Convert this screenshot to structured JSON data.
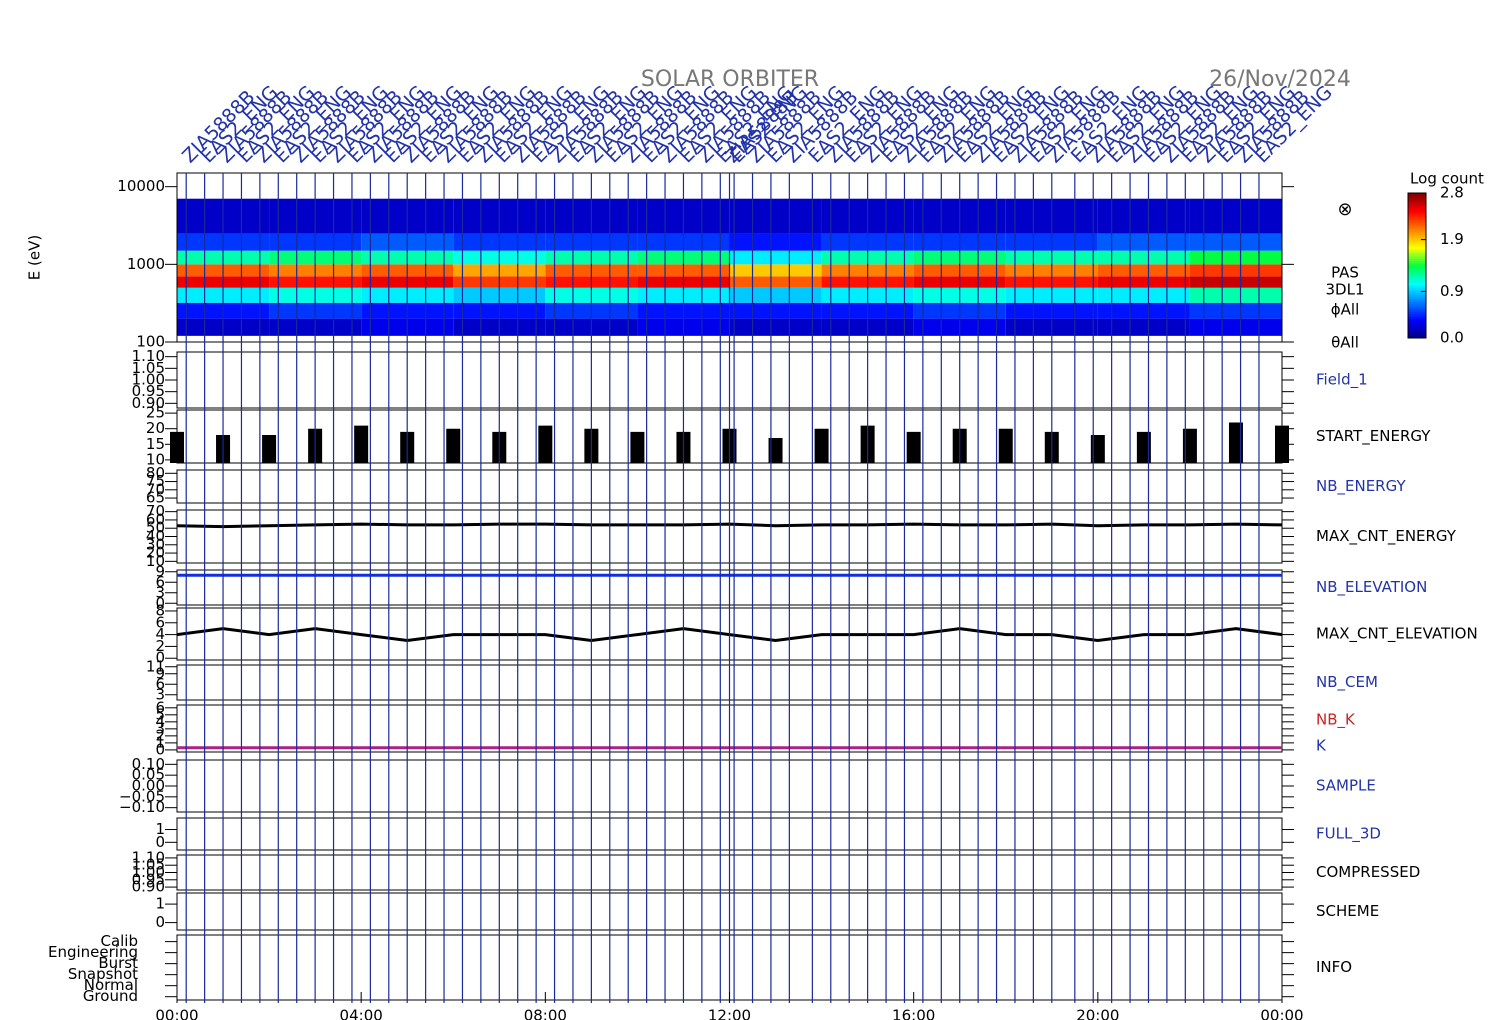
{
  "header": {
    "title": "SOLAR ORBITER",
    "date": "26/Nov/2024",
    "annotations": [
      "ZIA5888B",
      "EAS2_ENG",
      "ZIA5888B",
      "EAS2_ENG"
    ]
  },
  "x_axis": {
    "xlim": [
      0,
      24
    ],
    "xticks": [
      {
        "value": 0,
        "label": "00:00"
      },
      {
        "value": 4,
        "label": "04:00"
      },
      {
        "value": 8,
        "label": "08:00"
      },
      {
        "value": 12,
        "label": "12:00"
      },
      {
        "value": 16,
        "label": "16:00"
      },
      {
        "value": 20,
        "label": "20:00"
      },
      {
        "value": 24,
        "label": "00:00"
      }
    ]
  },
  "event_lines": {
    "color": "#1a2a9a",
    "x": [
      0.2,
      0.6,
      1.0,
      1.4,
      1.8,
      2.2,
      2.6,
      3.0,
      3.4,
      3.8,
      4.2,
      4.6,
      5.0,
      5.4,
      5.8,
      6.2,
      6.6,
      7.0,
      7.4,
      7.8,
      8.2,
      8.6,
      9.0,
      9.4,
      9.8,
      10.2,
      10.6,
      11.0,
      11.4,
      11.8,
      12.0,
      12.1,
      12.5,
      12.9,
      13.3,
      13.8,
      14.2,
      14.6,
      15.0,
      15.4,
      15.8,
      16.2,
      16.6,
      17.0,
      17.4,
      17.8,
      18.2,
      18.6,
      19.0,
      19.5,
      19.9,
      20.3,
      20.7,
      21.1,
      21.5,
      21.9,
      22.3,
      22.7,
      23.1,
      23.5
    ]
  },
  "colorbar": {
    "title": "Log count",
    "zlim": [
      0,
      2.8
    ],
    "colormap": [
      "#00007f",
      "#0000ff",
      "#0080ff",
      "#00ffff",
      "#00ff40",
      "#ffff00",
      "#ff8000",
      "#ff0000",
      "#7f0000"
    ],
    "ticks": [
      {
        "value": 0,
        "label": "0.0"
      },
      {
        "value": 0.9,
        "label": "0.9"
      },
      {
        "value": 1.9,
        "label": "1.9"
      },
      {
        "value": 2.8,
        "label": "2.8"
      }
    ]
  },
  "chart_data": [
    {
      "type": "heatmap",
      "ylabel": "E (eV)",
      "log": true,
      "ylim": [
        100,
        15000
      ],
      "yticks": [
        100,
        1000,
        10000
      ],
      "labels": [
        "PAS",
        "3DL1",
        "ϕAll",
        "θAll"
      ],
      "label_color": "#000000",
      "symbol": "⊗",
      "x_edges": [
        0,
        2,
        4,
        6,
        8,
        10,
        12,
        14,
        16,
        18,
        20,
        22,
        24
      ],
      "y_edges": [
        120,
        200,
        320,
        500,
        700,
        1000,
        1500,
        2500,
        7000
      ],
      "z": [
        [
          0.2,
          0.2,
          0.3,
          0.2,
          0.2,
          0.3,
          0.2,
          0.2,
          0.3,
          0.2,
          0.2,
          0.3
        ],
        [
          0.4,
          0.5,
          0.4,
          0.4,
          0.5,
          0.4,
          0.4,
          0.4,
          0.5,
          0.4,
          0.4,
          0.5
        ],
        [
          1.0,
          1.1,
          1.0,
          0.9,
          1.1,
          1.0,
          0.9,
          1.0,
          1.1,
          1.0,
          1.0,
          1.2
        ],
        [
          2.5,
          2.4,
          2.5,
          2.3,
          2.4,
          2.5,
          2.2,
          2.4,
          2.5,
          2.4,
          2.5,
          2.6
        ],
        [
          2.2,
          2.1,
          2.2,
          2.0,
          2.2,
          2.2,
          1.9,
          2.1,
          2.2,
          2.1,
          2.2,
          2.3
        ],
        [
          1.2,
          1.3,
          1.2,
          1.1,
          1.2,
          1.3,
          1.0,
          1.2,
          1.3,
          1.2,
          1.2,
          1.4
        ],
        [
          0.5,
          0.5,
          0.6,
          0.5,
          0.5,
          0.5,
          0.4,
          0.5,
          0.5,
          0.5,
          0.6,
          0.6
        ],
        [
          0.2,
          0.2,
          0.2,
          0.2,
          0.2,
          0.2,
          0.2,
          0.2,
          0.2,
          0.2,
          0.2,
          0.2
        ]
      ]
    },
    {
      "type": "empty",
      "labels": [
        "Field_1"
      ],
      "label_color": "#2233aa",
      "ylim": [
        0.88,
        1.12
      ],
      "yticks": [
        {
          "value": 0.9,
          "label": "0.90"
        },
        {
          "value": 0.95,
          "label": "0.95"
        },
        {
          "value": 1.0,
          "label": "1.00"
        },
        {
          "value": 1.05,
          "label": "1.05"
        },
        {
          "value": 1.1,
          "label": "1.10"
        }
      ]
    },
    {
      "type": "bars",
      "labels": [
        "START_ENERGY"
      ],
      "label_color": "#000000",
      "ylim": [
        9,
        26
      ],
      "yticks": [
        10,
        15,
        20,
        25
      ],
      "x": [
        0,
        1,
        2,
        3,
        4,
        5,
        6,
        7,
        8,
        9,
        10,
        11,
        12,
        13,
        14,
        15,
        16,
        17,
        18,
        19,
        20,
        21,
        22,
        23,
        24
      ],
      "series": [
        {
          "color": "#000000",
          "values": [
            19,
            18,
            18,
            20,
            21,
            19,
            20,
            19,
            21,
            20,
            19,
            19,
            20,
            17,
            20,
            21,
            19,
            20,
            20,
            19,
            18,
            19,
            20,
            22,
            21
          ]
        }
      ]
    },
    {
      "type": "empty",
      "labels": [
        "NB_ENERGY"
      ],
      "label_color": "#2233aa",
      "ylim": [
        62,
        82
      ],
      "yticks": [
        65,
        70,
        75,
        80
      ]
    },
    {
      "type": "line",
      "labels": [
        "MAX_CNT_ENERGY"
      ],
      "label_color": "#000000",
      "ylim": [
        8,
        72
      ],
      "yticks": [
        10,
        20,
        30,
        40,
        50,
        60,
        70
      ],
      "x": [
        0,
        1,
        2,
        3,
        4,
        5,
        6,
        7,
        8,
        9,
        10,
        11,
        12,
        13,
        14,
        15,
        16,
        17,
        18,
        19,
        20,
        21,
        22,
        23,
        24
      ],
      "series": [
        {
          "color": "#000000",
          "values": [
            53,
            52,
            53,
            54,
            55,
            54,
            54,
            55,
            55,
            54,
            54,
            54,
            55,
            53,
            54,
            54,
            55,
            54,
            54,
            55,
            53,
            54,
            54,
            55,
            54
          ]
        }
      ]
    },
    {
      "type": "line",
      "labels": [
        "NB_ELEVATION"
      ],
      "label_color": "#2233aa",
      "ylim": [
        -0.5,
        9.5
      ],
      "yticks": [
        0,
        3,
        6,
        9
      ],
      "x": [
        0,
        1,
        2,
        3,
        4,
        5,
        6,
        7,
        8,
        9,
        10,
        11,
        12,
        13,
        14,
        15,
        16,
        17,
        18,
        19,
        20,
        21,
        22,
        23,
        24
      ],
      "series": [
        {
          "color": "#1030e0",
          "values": [
            8,
            8,
            8,
            8,
            8,
            8,
            8,
            8,
            8,
            8,
            8,
            8,
            8,
            8,
            8,
            8,
            8,
            8,
            8,
            8,
            8,
            8,
            8,
            8,
            8
          ]
        }
      ]
    },
    {
      "type": "line",
      "labels": [
        "MAX_CNT_ELEVATION"
      ],
      "label_color": "#000000",
      "ylim": [
        -0.3,
        8.5
      ],
      "yticks": [
        0,
        2,
        4,
        6,
        8
      ],
      "x": [
        0,
        1,
        2,
        3,
        4,
        5,
        6,
        7,
        8,
        9,
        10,
        11,
        12,
        13,
        14,
        15,
        16,
        17,
        18,
        19,
        20,
        21,
        22,
        23,
        24
      ],
      "series": [
        {
          "color": "#000000",
          "values": [
            4,
            5,
            4,
            5,
            4,
            3,
            4,
            4,
            4,
            3,
            4,
            5,
            4,
            3,
            4,
            4,
            4,
            5,
            4,
            4,
            3,
            4,
            4,
            5,
            4
          ]
        }
      ]
    },
    {
      "type": "empty",
      "labels": [
        "NB_CEM"
      ],
      "label_color": "#2233aa",
      "ylim": [
        1.5,
        11.5
      ],
      "yticks": [
        3,
        6,
        9,
        11
      ]
    },
    {
      "type": "line",
      "labels": [
        "NB_K",
        "K"
      ],
      "label_colors": [
        "#cc2222",
        "#2233aa"
      ],
      "ylim": [
        -0.3,
        6.4
      ],
      "yticks": [
        0,
        1,
        2,
        3,
        4,
        5,
        6
      ],
      "x": [
        0,
        24
      ],
      "series": [
        {
          "color": "#aa2288",
          "values": [
            0.3,
            0.3
          ]
        }
      ]
    },
    {
      "type": "empty",
      "labels": [
        "SAMPLE"
      ],
      "label_color": "#2233aa",
      "ylim": [
        -0.12,
        0.12
      ],
      "yticks": [
        {
          "value": -0.1,
          "label": "−0.10"
        },
        {
          "value": -0.05,
          "label": "−0.05"
        },
        {
          "value": 0,
          "label": "0.00"
        },
        {
          "value": 0.05,
          "label": "0.05"
        },
        {
          "value": 0.1,
          "label": "0.10"
        }
      ]
    },
    {
      "type": "empty",
      "labels": [
        "FULL_3D"
      ],
      "label_color": "#2233aa",
      "ylim": [
        -0.6,
        1.9
      ],
      "yticks": [
        0,
        1
      ]
    },
    {
      "type": "empty",
      "labels": [
        "COMPRESSED"
      ],
      "label_color": "#000000",
      "ylim": [
        0.88,
        1.12
      ],
      "yticks": [
        {
          "value": 0.9,
          "label": "0.90"
        },
        {
          "value": 0.95,
          "label": "0.95"
        },
        {
          "value": 1.0,
          "label": "1.00"
        },
        {
          "value": 1.05,
          "label": "1.05"
        },
        {
          "value": 1.1,
          "label": "1.10"
        }
      ]
    },
    {
      "type": "empty",
      "labels": [
        "SCHEME"
      ],
      "label_color": "#000000",
      "ylim": [
        -0.4,
        1.6
      ],
      "yticks": [
        0,
        1
      ]
    },
    {
      "type": "category",
      "labels": [
        "INFO"
      ],
      "label_color": "#000000",
      "ylim": [
        -0.3,
        5.6
      ],
      "categories": [
        "Ground",
        "Normal",
        "Snapshot",
        "Burst",
        "Engineering",
        "Calib"
      ]
    }
  ]
}
